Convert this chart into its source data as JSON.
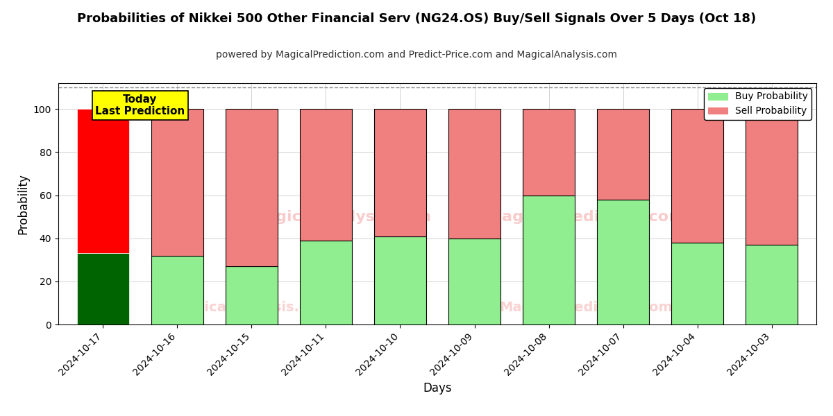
{
  "title": "Probabilities of Nikkei 500 Other Financial Serv (NG24.OS) Buy/Sell Signals Over 5 Days (Oct 18)",
  "subtitle": "powered by MagicalPrediction.com and Predict-Price.com and MagicalAnalysis.com",
  "xlabel": "Days",
  "ylabel": "Probability",
  "categories": [
    "2024-10-17",
    "2024-10-16",
    "2024-10-15",
    "2024-10-11",
    "2024-10-10",
    "2024-10-09",
    "2024-10-08",
    "2024-10-07",
    "2024-10-04",
    "2024-10-03"
  ],
  "buy_values": [
    33,
    32,
    27,
    39,
    41,
    40,
    60,
    58,
    38,
    37
  ],
  "sell_values": [
    67,
    68,
    73,
    61,
    59,
    60,
    40,
    42,
    62,
    63
  ],
  "today_buy_color": "#006400",
  "today_sell_color": "#ff0000",
  "buy_color": "#90ee90",
  "sell_color": "#f08080",
  "today_label_bg": "#ffff00",
  "today_label_text": "Today\nLast Prediction",
  "ylim": [
    0,
    112
  ],
  "yticks": [
    0,
    20,
    40,
    60,
    80,
    100
  ],
  "dashed_line_y": 110,
  "watermark1_text": "MagicalAnalysis.com",
  "watermark2_text": "MagicalPrediction.com",
  "legend_buy_label": "Buy Probability",
  "legend_sell_label": "Sell Probability",
  "title_fontsize": 13,
  "subtitle_fontsize": 10,
  "axis_label_fontsize": 12,
  "tick_fontsize": 10
}
